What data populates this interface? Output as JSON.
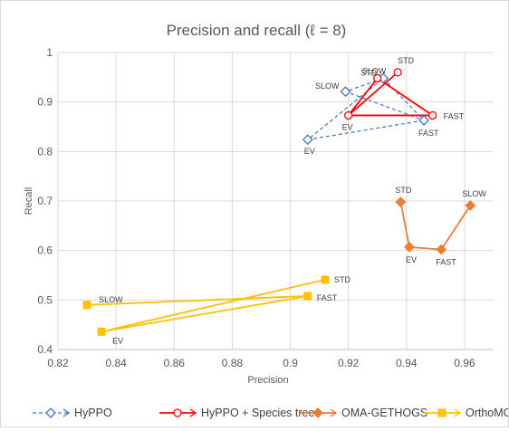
{
  "chart_data": {
    "type": "line",
    "title": "Precision and recall (ℓ = 8)",
    "xlabel": "Precision",
    "ylabel": "Recall",
    "xlim": [
      0.82,
      0.97
    ],
    "ylim": [
      0.4,
      1.0
    ],
    "xticks": [
      "0.82",
      "0.84",
      "0.86",
      "0.88",
      "0.9",
      "0.92",
      "0.94",
      "0.96"
    ],
    "yticks": [
      "0.4",
      "0.5",
      "0.6",
      "0.7",
      "0.8",
      "0.9",
      "1"
    ],
    "grid": "vertical-and-horizontal",
    "legend_position": "bottom",
    "series": [
      {
        "name": "HyPPO",
        "color": "#4472c4",
        "marker": "diamond-open",
        "line": "dashed",
        "points": [
          {
            "label": "STD",
            "x": 0.932,
            "y": 0.948
          },
          {
            "label": "FAST",
            "x": 0.946,
            "y": 0.863
          },
          {
            "label": "SLOW",
            "x": 0.919,
            "y": 0.921
          },
          {
            "label": "EV",
            "x": 0.906,
            "y": 0.824
          }
        ],
        "path": [
          "STD",
          "FAST",
          "SLOW",
          "STD",
          "EV",
          "FAST"
        ]
      },
      {
        "name": "HyPPO + Species tree",
        "color": "#ff0000",
        "marker": "circle-open",
        "line": "solid",
        "points": [
          {
            "label": "STD",
            "x": 0.937,
            "y": 0.96
          },
          {
            "label": "SLOW",
            "x": 0.93,
            "y": 0.948
          },
          {
            "label": "EV",
            "x": 0.92,
            "y": 0.873
          },
          {
            "label": "FAST",
            "x": 0.949,
            "y": 0.873
          }
        ],
        "path": [
          "STD",
          "EV",
          "FAST",
          "SLOW",
          "EV"
        ]
      },
      {
        "name": "OMA-GETHOGS",
        "color": "#ed7d31",
        "marker": "diamond-filled",
        "line": "solid",
        "points": [
          {
            "label": "STD",
            "x": 0.938,
            "y": 0.698
          },
          {
            "label": "EV",
            "x": 0.941,
            "y": 0.607
          },
          {
            "label": "FAST",
            "x": 0.952,
            "y": 0.602
          },
          {
            "label": "SLOW",
            "x": 0.962,
            "y": 0.691
          }
        ],
        "path": [
          "STD",
          "EV",
          "FAST",
          "SLOW"
        ]
      },
      {
        "name": "OrthoMCL",
        "color": "#ffc000",
        "marker": "square-filled",
        "line": "solid",
        "points": [
          {
            "label": "STD",
            "x": 0.912,
            "y": 0.541
          },
          {
            "label": "FAST",
            "x": 0.906,
            "y": 0.508
          },
          {
            "label": "SLOW",
            "x": 0.83,
            "y": 0.49
          },
          {
            "label": "EV",
            "x": 0.835,
            "y": 0.436
          }
        ],
        "path": [
          "SLOW",
          "FAST",
          "EV",
          "STD"
        ]
      }
    ]
  }
}
